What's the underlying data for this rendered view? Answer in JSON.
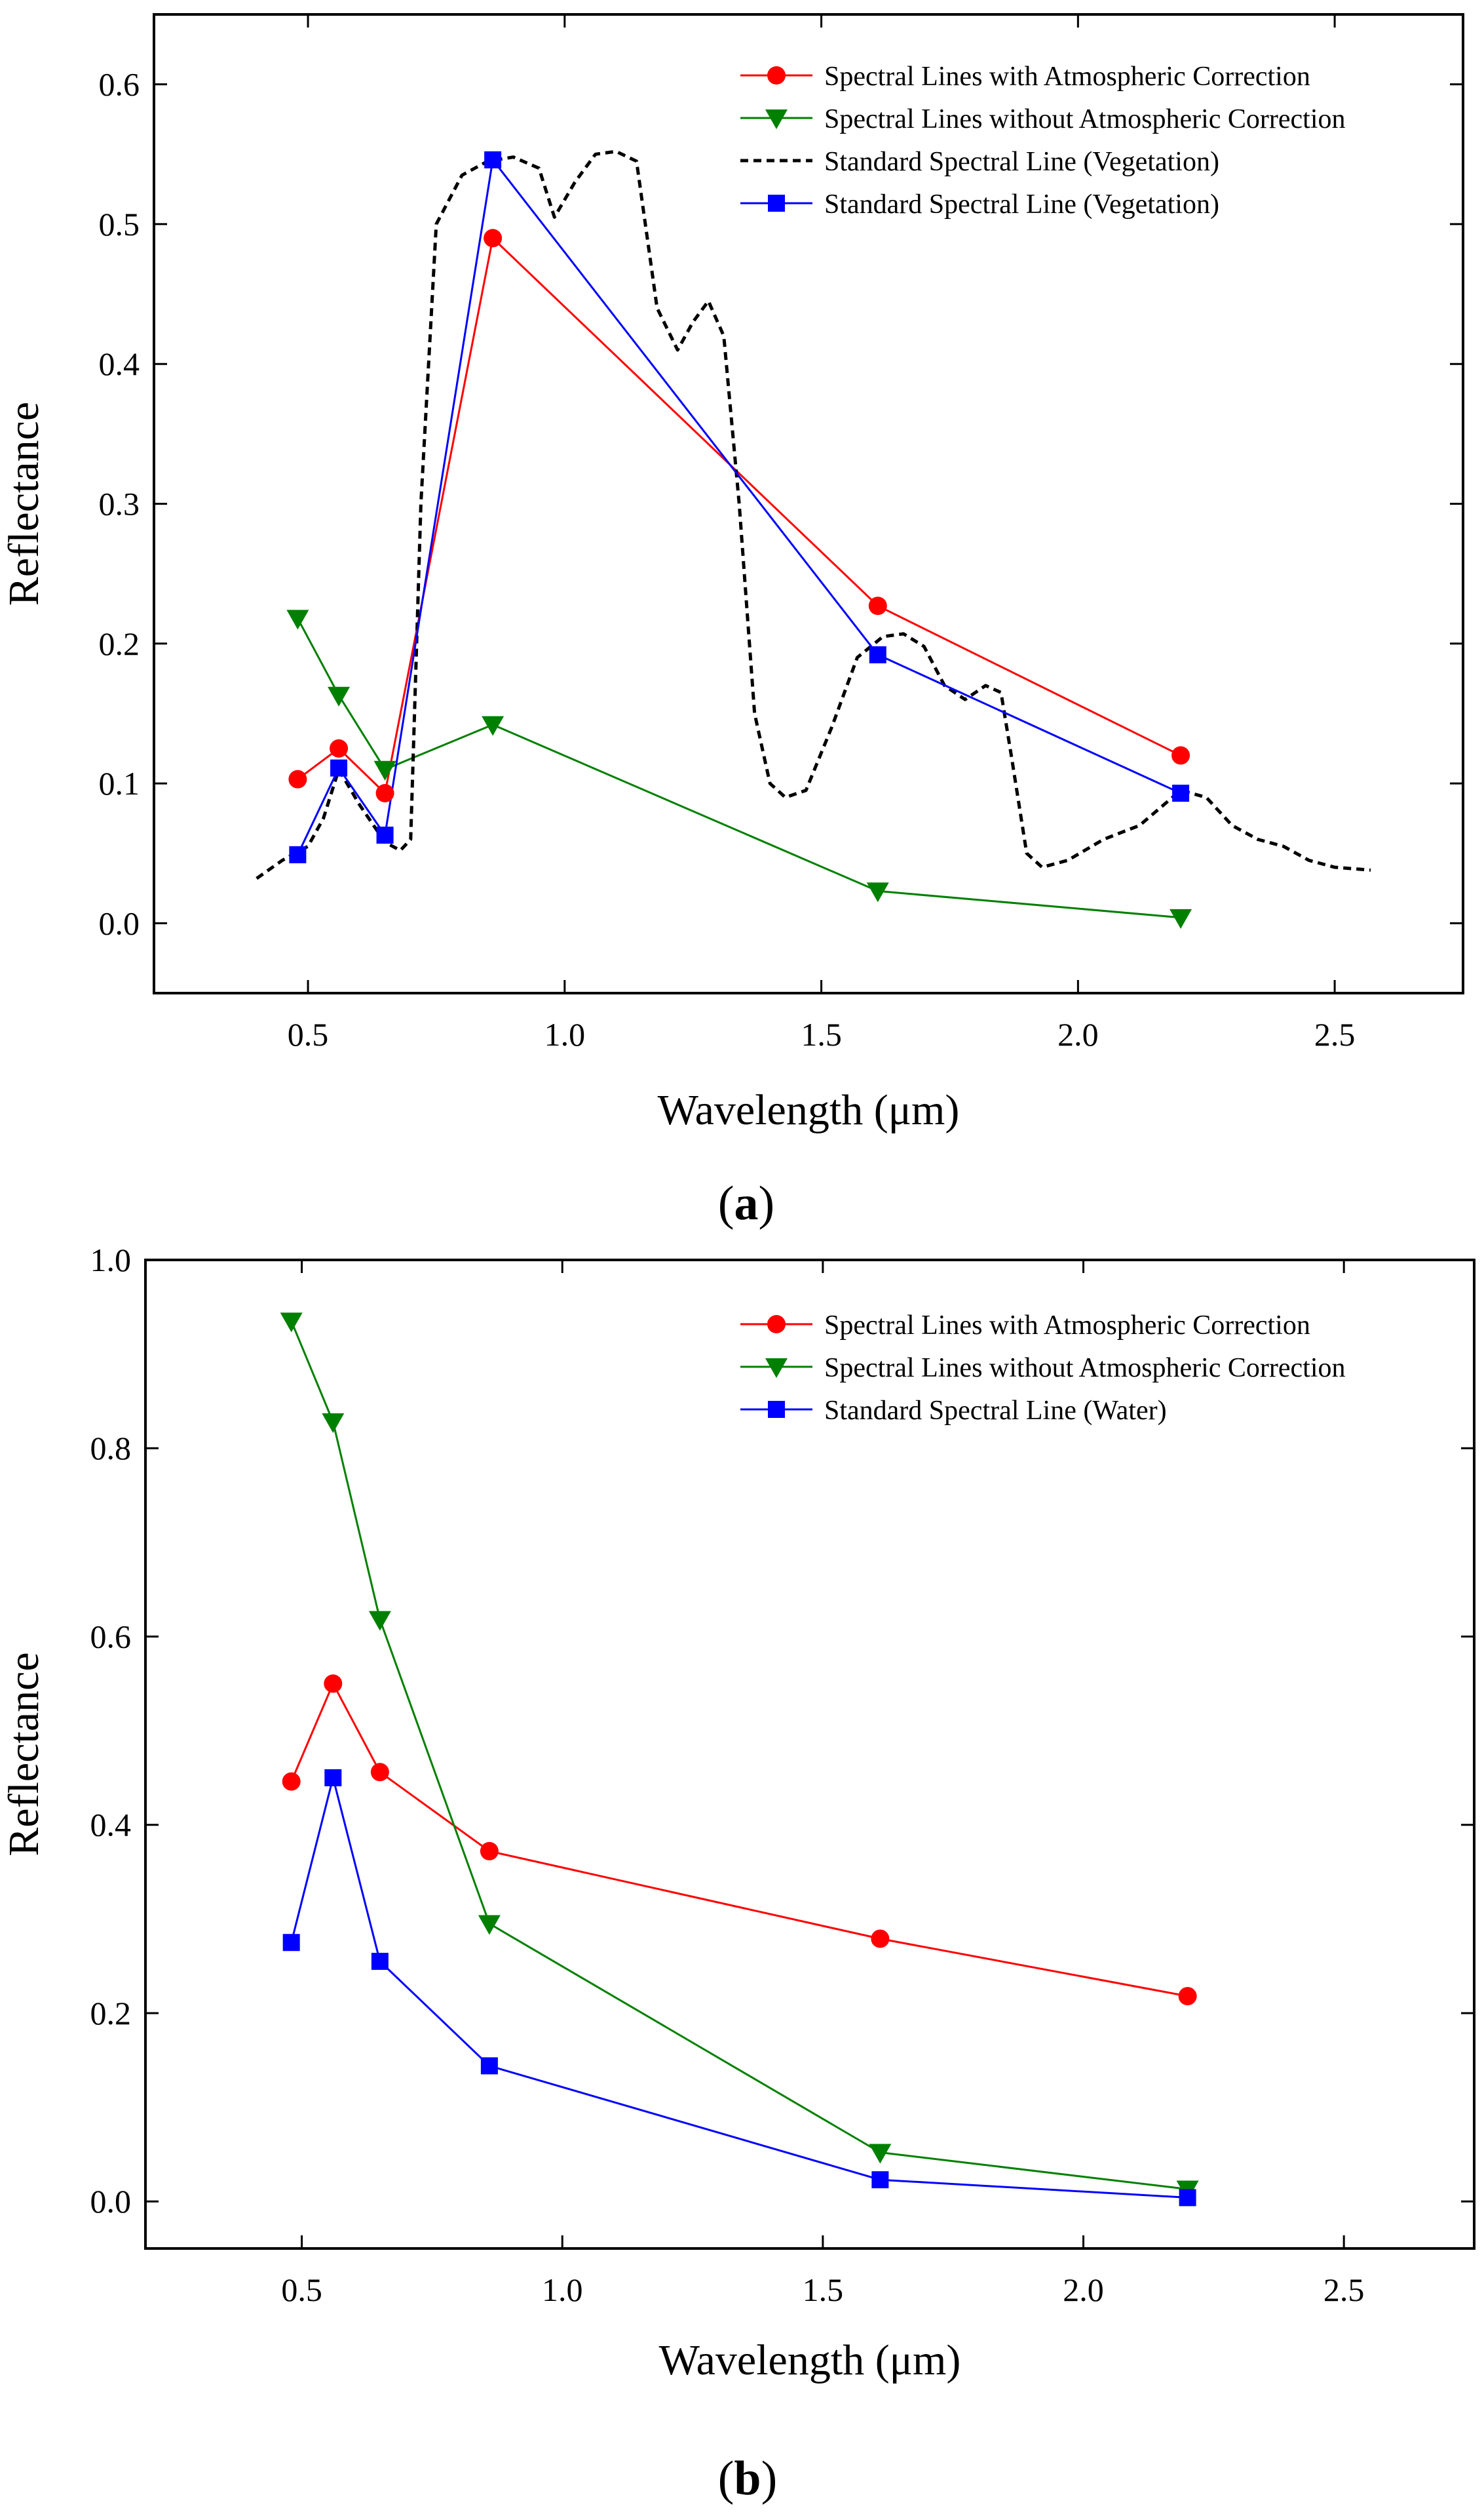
{
  "colors": {
    "with_correction": "#ff0000",
    "without_correction": "#008000",
    "standard": "#0000ff",
    "standard_curve": "#000000"
  },
  "chart_data": [
    {
      "panel_label": "a",
      "panel_label_open": "(",
      "panel_label_close": ")",
      "type": "line",
      "xlabel": "Wavelength (μm)",
      "ylabel": "Reflectance",
      "xlim": [
        0.2,
        2.75
      ],
      "ylim": [
        -0.05,
        0.65
      ],
      "xticks": [
        0.5,
        1.0,
        1.5,
        2.0,
        2.5
      ],
      "xtick_labels": [
        "0.5",
        "1.0",
        "1.5",
        "2.0",
        "2.5"
      ],
      "yticks": [
        0.0,
        0.1,
        0.2,
        0.3,
        0.4,
        0.5,
        0.6
      ],
      "ytick_labels": [
        "0.0",
        "0.1",
        "0.2",
        "0.3",
        "0.4",
        "0.5",
        "0.6"
      ],
      "legend_position": "top-right",
      "series": [
        {
          "name": "Spectral Lines with Atmospheric Correction",
          "marker": "circle",
          "style": "solid",
          "color": "#ff0000",
          "x": [
            0.48,
            0.56,
            0.65,
            0.86,
            1.61,
            2.2
          ],
          "y": [
            0.103,
            0.125,
            0.093,
            0.49,
            0.227,
            0.12
          ]
        },
        {
          "name": "Spectral Lines without Atmospheric Correction",
          "marker": "triangle-down",
          "style": "solid",
          "color": "#008000",
          "x": [
            0.48,
            0.56,
            0.65,
            0.86,
            1.61,
            2.2
          ],
          "y": [
            0.218,
            0.163,
            0.11,
            0.142,
            0.023,
            0.004
          ]
        },
        {
          "name": "Standard Spectral Line (Vegetation)",
          "marker": "none",
          "style": "dashed",
          "color": "#000000",
          "x": [
            0.4,
            0.45,
            0.5,
            0.53,
            0.56,
            0.6,
            0.65,
            0.68,
            0.7,
            0.72,
            0.75,
            0.8,
            0.85,
            0.9,
            0.95,
            0.98,
            1.02,
            1.06,
            1.1,
            1.14,
            1.18,
            1.22,
            1.25,
            1.28,
            1.31,
            1.34,
            1.37,
            1.4,
            1.43,
            1.47,
            1.52,
            1.57,
            1.62,
            1.66,
            1.7,
            1.74,
            1.78,
            1.82,
            1.85,
            1.87,
            1.9,
            1.93,
            1.98,
            2.05,
            2.12,
            2.2,
            2.25,
            2.3,
            2.35,
            2.4,
            2.45,
            2.5,
            2.57
          ],
          "y": [
            0.032,
            0.045,
            0.055,
            0.075,
            0.11,
            0.085,
            0.058,
            0.052,
            0.06,
            0.3,
            0.5,
            0.535,
            0.545,
            0.548,
            0.54,
            0.505,
            0.53,
            0.55,
            0.552,
            0.545,
            0.44,
            0.41,
            0.43,
            0.445,
            0.42,
            0.3,
            0.15,
            0.1,
            0.09,
            0.095,
            0.14,
            0.19,
            0.205,
            0.207,
            0.198,
            0.17,
            0.16,
            0.17,
            0.165,
            0.12,
            0.05,
            0.04,
            0.045,
            0.06,
            0.07,
            0.095,
            0.09,
            0.07,
            0.06,
            0.055,
            0.045,
            0.04,
            0.038
          ]
        },
        {
          "name": "Standard Spectral Line (Vegetation)",
          "marker": "square",
          "style": "solid",
          "color": "#0000ff",
          "x": [
            0.48,
            0.56,
            0.65,
            0.86,
            1.61,
            2.2
          ],
          "y": [
            0.049,
            0.111,
            0.063,
            0.546,
            0.192,
            0.093
          ]
        }
      ]
    },
    {
      "panel_label": "b",
      "panel_label_open": "(",
      "panel_label_close": ")",
      "type": "line",
      "xlabel": "Wavelength (μm)",
      "ylabel": "Reflectance",
      "xlim": [
        0.2,
        2.75
      ],
      "ylim": [
        -0.05,
        1.0
      ],
      "xticks": [
        0.5,
        1.0,
        1.5,
        2.0,
        2.5
      ],
      "xtick_labels": [
        "0.5",
        "1.0",
        "1.5",
        "2.0",
        "2.5"
      ],
      "yticks": [
        0.0,
        0.2,
        0.4,
        0.6,
        0.8,
        1.0
      ],
      "ytick_labels": [
        "0.0",
        "0.2",
        "0.4",
        "0.6",
        "0.8",
        "1.0"
      ],
      "legend_position": "top-right",
      "series": [
        {
          "name": "Spectral Lines with Atmospheric Correction",
          "marker": "circle",
          "style": "solid",
          "color": "#ff0000",
          "x": [
            0.48,
            0.56,
            0.65,
            0.86,
            1.61,
            2.2
          ],
          "y": [
            0.446,
            0.55,
            0.456,
            0.372,
            0.279,
            0.218
          ]
        },
        {
          "name": "Spectral Lines without Atmospheric Correction",
          "marker": "triangle-down",
          "style": "solid",
          "color": "#008000",
          "x": [
            0.48,
            0.56,
            0.65,
            0.86,
            1.61,
            2.2
          ],
          "y": [
            0.935,
            0.828,
            0.618,
            0.295,
            0.052,
            0.013
          ]
        },
        {
          "name": "Standard Spectral Line (Water)",
          "marker": "square",
          "style": "solid",
          "color": "#0000ff",
          "x": [
            0.48,
            0.56,
            0.65,
            0.86,
            1.61,
            2.2
          ],
          "y": [
            0.275,
            0.45,
            0.255,
            0.144,
            0.023,
            0.004
          ]
        }
      ]
    }
  ]
}
